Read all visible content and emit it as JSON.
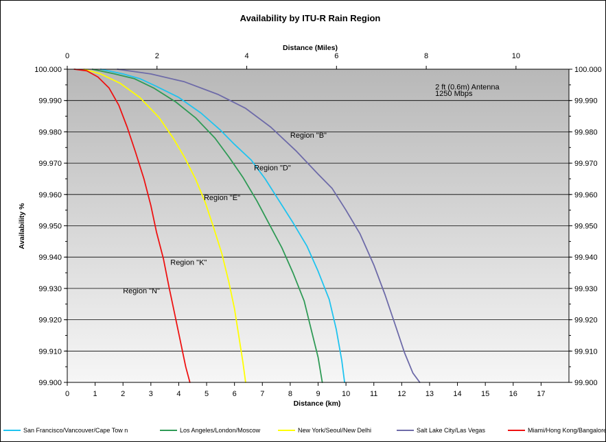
{
  "chart_data": {
    "type": "line",
    "title": "Availability by ITU-R Rain Region",
    "xlabel": "Distance (km)",
    "x2label": "Distance (Miles)",
    "ylabel": "Availability %",
    "xlim": [
      0,
      18
    ],
    "x2lim": [
      0,
      11.18
    ],
    "ylim": [
      99.9,
      100.0
    ],
    "x_ticks": [
      "0",
      "1",
      "2",
      "3",
      "4",
      "5",
      "6",
      "7",
      "8",
      "9",
      "10",
      "11",
      "12",
      "13",
      "14",
      "15",
      "16",
      "17"
    ],
    "x2_ticks": [
      "0",
      "2",
      "4",
      "6",
      "8",
      "10"
    ],
    "y_ticks": [
      "99.900",
      "99.910",
      "99.920",
      "99.930",
      "99.940",
      "99.950",
      "99.960",
      "99.970",
      "99.980",
      "99.990",
      "100.000"
    ],
    "grid": true,
    "legend_position": "bottom",
    "background": "gray gradient",
    "annotations": [
      {
        "text": "2 ft (0.6m) Antenna",
        "x": 13.2,
        "y": 99.9935
      },
      {
        "text": "1250 Mbps",
        "x": 13.2,
        "y": 99.9915
      },
      {
        "text": "Region \"B\"",
        "x": 8.0,
        "y": 99.9781
      },
      {
        "text": "Region \"D\"",
        "x": 6.7,
        "y": 99.9677
      },
      {
        "text": "Region \"E\"",
        "x": 4.9,
        "y": 99.9582
      },
      {
        "text": "Region \"K\"",
        "x": 3.7,
        "y": 99.9375
      },
      {
        "text": "Region \"N\"",
        "x": 2.0,
        "y": 99.9285
      }
    ],
    "series": [
      {
        "name": "San Francisco/Vancouver/Cape Tow n",
        "color": "#1ec3ef",
        "points": [
          [
            1.2,
            100.0
          ],
          [
            2.0,
            99.9985
          ],
          [
            2.6,
            99.997
          ],
          [
            3.2,
            99.9945
          ],
          [
            4.0,
            99.991
          ],
          [
            4.8,
            99.986
          ],
          [
            5.5,
            99.9805
          ],
          [
            6.0,
            99.976
          ],
          [
            6.6,
            99.971
          ],
          [
            7.1,
            99.965
          ],
          [
            7.6,
            99.958
          ],
          [
            8.1,
            99.951
          ],
          [
            8.6,
            99.9435
          ],
          [
            9.0,
            99.9355
          ],
          [
            9.4,
            99.9265
          ],
          [
            9.65,
            99.917
          ],
          [
            9.85,
            99.907
          ],
          [
            9.95,
            99.9
          ]
        ]
      },
      {
        "name": "Los Angeles/London/Moscow",
        "color": "#2e9a55",
        "points": [
          [
            0.9,
            100.0
          ],
          [
            1.7,
            99.9985
          ],
          [
            2.4,
            99.997
          ],
          [
            3.1,
            99.994
          ],
          [
            3.9,
            99.9895
          ],
          [
            4.6,
            99.9845
          ],
          [
            5.3,
            99.978
          ],
          [
            5.8,
            99.972
          ],
          [
            6.3,
            99.9655
          ],
          [
            6.8,
            99.958
          ],
          [
            7.25,
            99.9505
          ],
          [
            7.7,
            99.943
          ],
          [
            8.1,
            99.935
          ],
          [
            8.5,
            99.926
          ],
          [
            8.75,
            99.917
          ],
          [
            9.0,
            99.908
          ],
          [
            9.15,
            99.9
          ]
        ]
      },
      {
        "name": "New York/Seoul/New Delhi",
        "color": "#ffff00",
        "points": [
          [
            0.6,
            100.0
          ],
          [
            1.2,
            99.9985
          ],
          [
            1.9,
            99.9955
          ],
          [
            2.6,
            99.991
          ],
          [
            3.3,
            99.9845
          ],
          [
            3.8,
            99.978
          ],
          [
            4.2,
            99.972
          ],
          [
            4.6,
            99.965
          ],
          [
            4.95,
            99.9575
          ],
          [
            5.25,
            99.9495
          ],
          [
            5.55,
            99.941
          ],
          [
            5.8,
            99.932
          ],
          [
            6.0,
            99.9235
          ],
          [
            6.15,
            99.915
          ],
          [
            6.3,
            99.9065
          ],
          [
            6.4,
            99.9
          ]
        ]
      },
      {
        "name": "Salt Lake City/Las Vegas",
        "color": "#6d6aa8",
        "points": [
          [
            1.8,
            100.0
          ],
          [
            3.0,
            99.9985
          ],
          [
            4.2,
            99.996
          ],
          [
            5.4,
            99.992
          ],
          [
            6.4,
            99.9875
          ],
          [
            7.3,
            99.9815
          ],
          [
            8.2,
            99.974
          ],
          [
            9.0,
            99.9665
          ],
          [
            9.5,
            99.962
          ],
          [
            10.0,
            99.955
          ],
          [
            10.5,
            99.9475
          ],
          [
            11.0,
            99.9375
          ],
          [
            11.4,
            99.928
          ],
          [
            11.8,
            99.9175
          ],
          [
            12.1,
            99.9095
          ],
          [
            12.4,
            99.903
          ],
          [
            12.65,
            99.9
          ]
        ]
      },
      {
        "name": "Miami/Hong Kong/Bangalore",
        "color": "#ee1111",
        "points": [
          [
            0.25,
            100.0
          ],
          [
            0.7,
            99.9995
          ],
          [
            1.1,
            99.9975
          ],
          [
            1.5,
            99.994
          ],
          [
            1.85,
            99.9885
          ],
          [
            2.15,
            99.9815
          ],
          [
            2.45,
            99.9735
          ],
          [
            2.75,
            99.965
          ],
          [
            3.0,
            99.9565
          ],
          [
            3.2,
            99.948
          ],
          [
            3.45,
            99.9395
          ],
          [
            3.65,
            99.9305
          ],
          [
            3.85,
            99.922
          ],
          [
            4.05,
            99.9135
          ],
          [
            4.25,
            99.905
          ],
          [
            4.4,
            99.9
          ]
        ]
      }
    ]
  }
}
